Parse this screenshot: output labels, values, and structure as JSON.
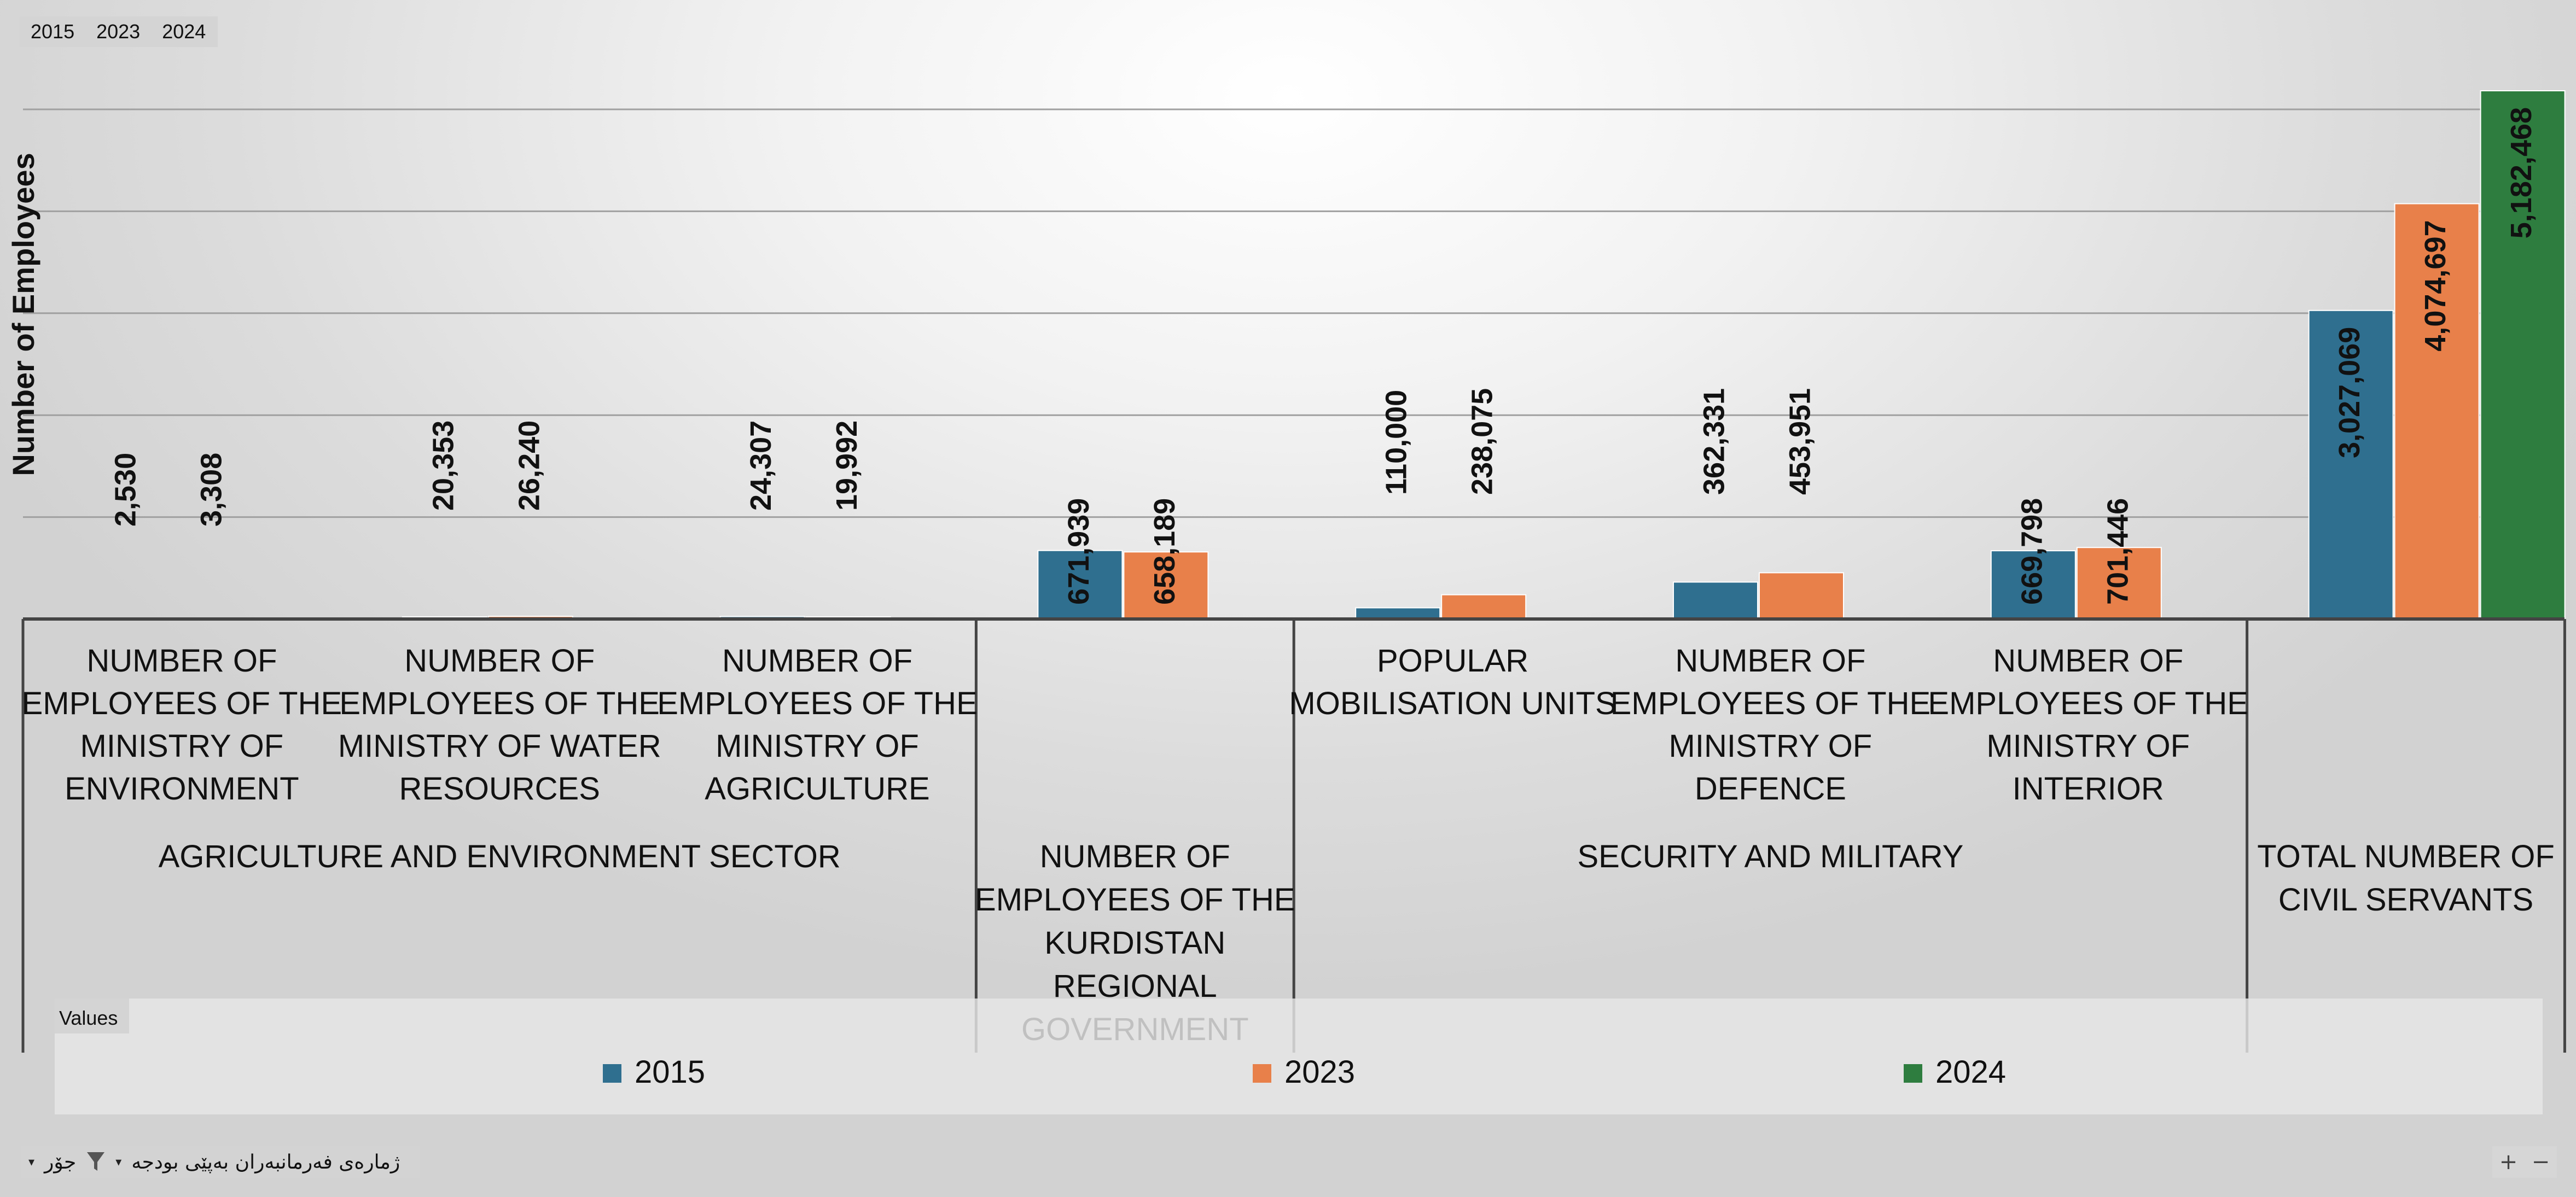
{
  "field_buttons": [
    "2015",
    "2023",
    "2024"
  ],
  "values_label": "Values",
  "filter_bar": {
    "label": "ژمارەی فەرمانبەران بەپێی بودجە",
    "field": "جۆر"
  },
  "zoom": {
    "in": "+",
    "out": "−"
  },
  "colors": {
    "2015": "#2f6f8f",
    "2023": "#e8804a",
    "2024": "#2e7d3f",
    "grid": "#a0a0a0",
    "axis": "#444444"
  },
  "chart_data": {
    "type": "bar",
    "ylabel": "Number of Employees",
    "ylim": [
      0,
      5400000
    ],
    "grid": true,
    "legend_position": "bottom",
    "series": [
      {
        "name": "2015",
        "values": [
          2530,
          20353,
          24307,
          671939,
          110000,
          362331,
          669798,
          3027069
        ]
      },
      {
        "name": "2023",
        "values": [
          3308,
          26240,
          19992,
          658189,
          238075,
          453951,
          701446,
          4074697
        ]
      },
      {
        "name": "2024",
        "values": [
          null,
          null,
          null,
          null,
          null,
          null,
          null,
          5182468
        ]
      }
    ],
    "data_labels": [
      [
        "2,530",
        "20,353",
        "24,307",
        "671,939",
        "110,000",
        "362,331",
        "669,798",
        "3,027,069"
      ],
      [
        "3,308",
        "26,240",
        "19,992",
        "658,189",
        "238,075",
        "453,951",
        "701,446",
        "4,074,697"
      ],
      [
        null,
        null,
        null,
        null,
        null,
        null,
        null,
        "5,182,468"
      ]
    ],
    "categories": [
      "NUMBER OF EMPLOYEES OF THE MINISTRY OF ENVIRONMENT",
      "NUMBER OF EMPLOYEES OF THE MINISTRY OF WATER RESOURCES",
      "NUMBER OF EMPLOYEES OF THE MINISTRY OF AGRICULTURE",
      "",
      "POPULAR MOBILISATION UNITS",
      "NUMBER OF EMPLOYEES OF THE MINISTRY OF DEFENCE",
      "NUMBER OF EMPLOYEES OF THE MINISTRY OF INTERIOR",
      ""
    ],
    "category_lines": [
      [
        "NUMBER OF",
        "EMPLOYEES OF THE",
        "MINISTRY OF",
        "ENVIRONMENT"
      ],
      [
        "NUMBER OF",
        "EMPLOYEES OF THE",
        "MINISTRY OF WATER",
        "RESOURCES"
      ],
      [
        "NUMBER OF",
        "EMPLOYEES OF THE",
        "MINISTRY OF",
        "AGRICULTURE"
      ],
      [],
      [
        "POPULAR",
        "MOBILISATION UNITS"
      ],
      [
        "NUMBER OF",
        "EMPLOYEES OF THE",
        "MINISTRY OF",
        "DEFENCE"
      ],
      [
        "NUMBER OF",
        "EMPLOYEES OF THE",
        "MINISTRY OF",
        "INTERIOR"
      ],
      []
    ],
    "groups": [
      {
        "label": "AGRICULTURE AND ENVIRONMENT SECTOR",
        "lines": [
          "AGRICULTURE AND ENVIRONMENT SECTOR"
        ],
        "start": 0,
        "end": 2
      },
      {
        "label": "NUMBER OF EMPLOYEES OF THE KURDISTAN REGIONAL GOVERNMENT",
        "lines": [
          "NUMBER OF",
          "EMPLOYEES OF THE",
          "KURDISTAN",
          "REGIONAL",
          "GOVERNMENT"
        ],
        "start": 3,
        "end": 3
      },
      {
        "label": "SECURITY AND MILITARY",
        "lines": [
          "SECURITY AND MILITARY"
        ],
        "start": 4,
        "end": 6
      },
      {
        "label": "TOTAL NUMBER OF CIVIL SERVANTS",
        "lines": [
          "TOTAL NUMBER OF",
          "CIVIL SERVANTS"
        ],
        "start": 7,
        "end": 7
      }
    ]
  }
}
